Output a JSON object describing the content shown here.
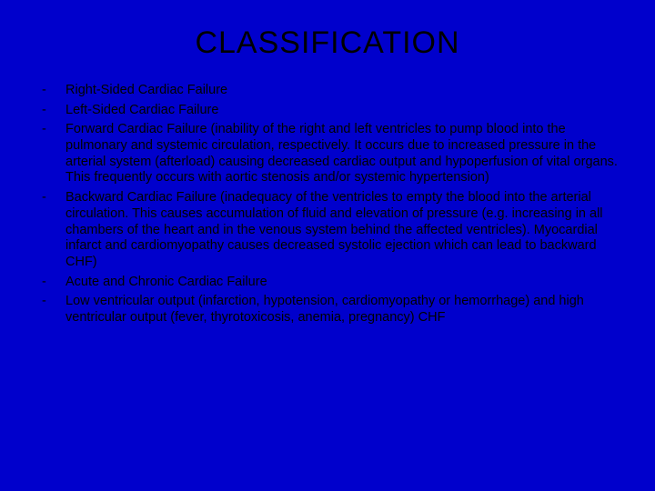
{
  "slide": {
    "background_color": "#0000cc",
    "text_color": "#000000",
    "title": "CLASSIFICATION",
    "title_fontsize": 34,
    "body_fontsize": 14.5,
    "bullet_char": "-",
    "items": [
      "Right-Sided Cardiac Failure",
      "Left-Sided Cardiac Failure",
      "Forward Cardiac Failure (inability of the right and left ventricles to pump blood into the pulmonary and systemic circulation, respectively. It occurs due to increased pressure in the arterial system (afterload) causing decreased cardiac output and hypoperfusion of vital organs. This frequently occurs with aortic stenosis and/or systemic hypertension)",
      "Backward Cardiac Failure (inadequacy of the ventricles to empty the blood into the arterial circulation. This causes accumulation of fluid and elevation of pressure (e.g. increasing in all chambers of the heart and in the venous system behind the affected ventricles). Myocardial infarct and cardiomyopathy causes decreased systolic ejection which can lead to backward CHF)",
      "Acute and Chronic Cardiac Failure",
      "Low ventricular output (infarction, hypotension, cardiomyopathy or hemorrhage)  and high ventricular output (fever, thyrotoxicosis, anemia, pregnancy) CHF"
    ]
  }
}
